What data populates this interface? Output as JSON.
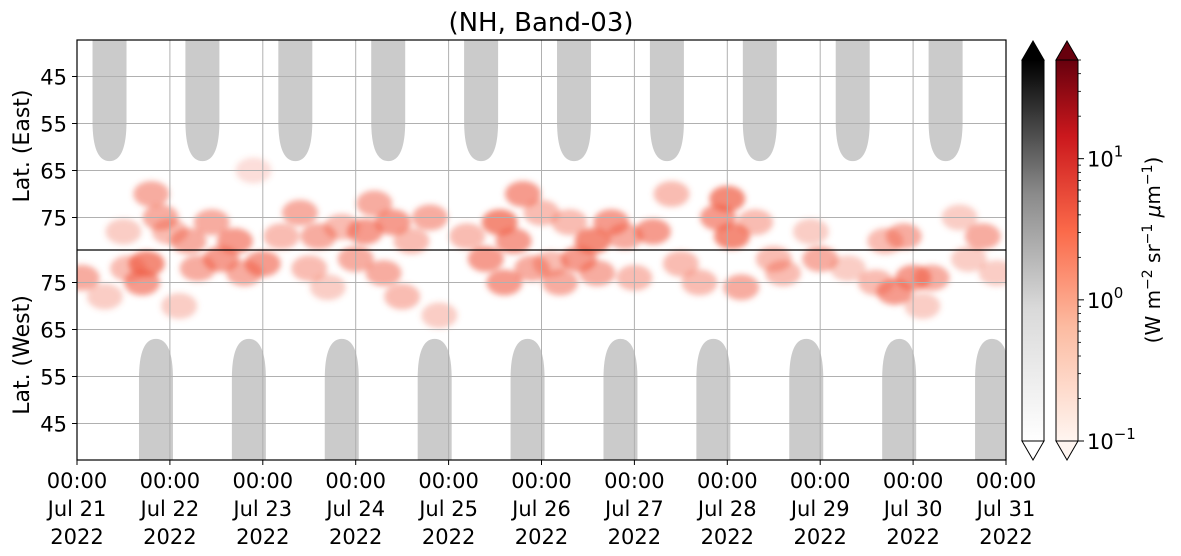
{
  "chart_data": {
    "type": "heatmap",
    "title": "(NH, Band-03)",
    "ylabel_top": "Lat. (East)",
    "ylabel_bottom": "Lat. (West)",
    "y_ticks_top": [
      "45",
      "55",
      "65",
      "75"
    ],
    "y_ticks_bottom": [
      "75",
      "65",
      "55",
      "45"
    ],
    "y_tick_values_top": [
      45,
      55,
      65,
      75
    ],
    "y_tick_values_bottom": [
      75,
      65,
      55,
      45
    ],
    "x_tick_labels": [
      {
        "time": "00:00",
        "date": "Jul 21",
        "year": "2022"
      },
      {
        "time": "00:00",
        "date": "Jul 22",
        "year": "2022"
      },
      {
        "time": "00:00",
        "date": "Jul 23",
        "year": "2022"
      },
      {
        "time": "00:00",
        "date": "Jul 24",
        "year": "2022"
      },
      {
        "time": "00:00",
        "date": "Jul 25",
        "year": "2022"
      },
      {
        "time": "00:00",
        "date": "Jul 26",
        "year": "2022"
      },
      {
        "time": "00:00",
        "date": "Jul 27",
        "year": "2022"
      },
      {
        "time": "00:00",
        "date": "Jul 28",
        "year": "2022"
      },
      {
        "time": "00:00",
        "date": "Jul 29",
        "year": "2022"
      },
      {
        "time": "00:00",
        "date": "Jul 30",
        "year": "2022"
      },
      {
        "time": "00:00",
        "date": "Jul 31",
        "year": "2022"
      }
    ],
    "x_range": [
      "2022-07-21 00:00",
      "2022-07-31 00:00"
    ],
    "colorbar": {
      "label": "(W m$^{-2}$ sr$^{-1}$ $\\mu$m$^{-1}$)",
      "scale": "log",
      "range": [
        0.1,
        50
      ],
      "ticks": [
        {
          "base": "10",
          "exp": "1",
          "value": 10
        },
        {
          "base": "10",
          "exp": "0",
          "value": 1
        },
        {
          "base": "10",
          "exp": "−1",
          "value": 0.1
        }
      ],
      "colormaps": [
        "Greys",
        "Reds"
      ],
      "extend": "both"
    },
    "grid": true,
    "divider_line": "black horizontal line between East and West halves",
    "daylight_masks": [
      {
        "hemisphere": "east",
        "center_day": 0.35
      },
      {
        "hemisphere": "east",
        "center_day": 1.35
      },
      {
        "hemisphere": "east",
        "center_day": 2.35
      },
      {
        "hemisphere": "east",
        "center_day": 3.35
      },
      {
        "hemisphere": "east",
        "center_day": 4.35
      },
      {
        "hemisphere": "east",
        "center_day": 5.35
      },
      {
        "hemisphere": "east",
        "center_day": 6.35
      },
      {
        "hemisphere": "east",
        "center_day": 7.35
      },
      {
        "hemisphere": "east",
        "center_day": 8.35
      },
      {
        "hemisphere": "east",
        "center_day": 9.35
      },
      {
        "hemisphere": "west",
        "center_day": 0.85
      },
      {
        "hemisphere": "west",
        "center_day": 1.85
      },
      {
        "hemisphere": "west",
        "center_day": 2.85
      },
      {
        "hemisphere": "west",
        "center_day": 3.85
      },
      {
        "hemisphere": "west",
        "center_day": 4.85
      },
      {
        "hemisphere": "west",
        "center_day": 5.85
      },
      {
        "hemisphere": "west",
        "center_day": 6.85
      },
      {
        "hemisphere": "west",
        "center_day": 7.85
      },
      {
        "hemisphere": "west",
        "center_day": 8.85
      },
      {
        "hemisphere": "west",
        "center_day": 9.85
      }
    ],
    "mask_edge_latitude": 63,
    "aurora_patches": [
      {
        "day": 0.05,
        "hemisphere": "west",
        "lat": 76,
        "intensity": 0.5
      },
      {
        "day": 0.3,
        "hemisphere": "west",
        "lat": 72,
        "intensity": 0.3
      },
      {
        "day": 0.5,
        "hemisphere": "east",
        "lat": 78,
        "intensity": 0.3
      },
      {
        "day": 0.55,
        "hemisphere": "west",
        "lat": 78,
        "intensity": 0.4
      },
      {
        "day": 0.7,
        "hemisphere": "west",
        "lat": 75,
        "intensity": 0.6
      },
      {
        "day": 0.75,
        "hemisphere": "west",
        "lat": 79,
        "intensity": 0.7
      },
      {
        "day": 0.8,
        "hemisphere": "east",
        "lat": 70,
        "intensity": 0.5
      },
      {
        "day": 0.9,
        "hemisphere": "east",
        "lat": 75,
        "intensity": 0.5
      },
      {
        "day": 1.0,
        "hemisphere": "east",
        "lat": 78,
        "intensity": 0.4
      },
      {
        "day": 1.1,
        "hemisphere": "west",
        "lat": 70,
        "intensity": 0.3
      },
      {
        "day": 1.2,
        "hemisphere": "east",
        "lat": 80,
        "intensity": 0.5
      },
      {
        "day": 1.3,
        "hemisphere": "west",
        "lat": 78,
        "intensity": 0.5
      },
      {
        "day": 1.45,
        "hemisphere": "east",
        "lat": 76,
        "intensity": 0.5
      },
      {
        "day": 1.55,
        "hemisphere": "west",
        "lat": 80,
        "intensity": 0.6
      },
      {
        "day": 1.7,
        "hemisphere": "east",
        "lat": 80,
        "intensity": 0.6
      },
      {
        "day": 1.8,
        "hemisphere": "west",
        "lat": 77,
        "intensity": 0.5
      },
      {
        "day": 1.9,
        "hemisphere": "east",
        "lat": 65,
        "intensity": 0.2
      },
      {
        "day": 2.0,
        "hemisphere": "west",
        "lat": 79,
        "intensity": 0.6
      },
      {
        "day": 2.2,
        "hemisphere": "east",
        "lat": 79,
        "intensity": 0.4
      },
      {
        "day": 2.4,
        "hemisphere": "east",
        "lat": 74,
        "intensity": 0.5
      },
      {
        "day": 2.5,
        "hemisphere": "west",
        "lat": 78,
        "intensity": 0.4
      },
      {
        "day": 2.6,
        "hemisphere": "east",
        "lat": 79,
        "intensity": 0.5
      },
      {
        "day": 2.7,
        "hemisphere": "west",
        "lat": 74,
        "intensity": 0.3
      },
      {
        "day": 2.85,
        "hemisphere": "east",
        "lat": 77,
        "intensity": 0.4
      },
      {
        "day": 3.0,
        "hemisphere": "west",
        "lat": 80,
        "intensity": 0.5
      },
      {
        "day": 3.1,
        "hemisphere": "east",
        "lat": 78,
        "intensity": 0.6
      },
      {
        "day": 3.2,
        "hemisphere": "east",
        "lat": 72,
        "intensity": 0.5
      },
      {
        "day": 3.3,
        "hemisphere": "west",
        "lat": 77,
        "intensity": 0.5
      },
      {
        "day": 3.4,
        "hemisphere": "east",
        "lat": 76,
        "intensity": 0.6
      },
      {
        "day": 3.5,
        "hemisphere": "west",
        "lat": 72,
        "intensity": 0.4
      },
      {
        "day": 3.6,
        "hemisphere": "east",
        "lat": 80,
        "intensity": 0.4
      },
      {
        "day": 3.8,
        "hemisphere": "east",
        "lat": 75,
        "intensity": 0.5
      },
      {
        "day": 3.9,
        "hemisphere": "west",
        "lat": 68,
        "intensity": 0.3
      },
      {
        "day": 4.2,
        "hemisphere": "east",
        "lat": 79,
        "intensity": 0.4
      },
      {
        "day": 4.4,
        "hemisphere": "west",
        "lat": 80,
        "intensity": 0.6
      },
      {
        "day": 4.55,
        "hemisphere": "east",
        "lat": 76,
        "intensity": 0.7
      },
      {
        "day": 4.6,
        "hemisphere": "west",
        "lat": 75,
        "intensity": 0.6
      },
      {
        "day": 4.7,
        "hemisphere": "east",
        "lat": 80,
        "intensity": 0.6
      },
      {
        "day": 4.8,
        "hemisphere": "east",
        "lat": 70,
        "intensity": 0.6
      },
      {
        "day": 4.9,
        "hemisphere": "west",
        "lat": 78,
        "intensity": 0.5
      },
      {
        "day": 5.0,
        "hemisphere": "east",
        "lat": 74,
        "intensity": 0.4
      },
      {
        "day": 5.1,
        "hemisphere": "west",
        "lat": 79,
        "intensity": 0.4
      },
      {
        "day": 5.2,
        "hemisphere": "west",
        "lat": 75,
        "intensity": 0.5
      },
      {
        "day": 5.3,
        "hemisphere": "east",
        "lat": 76,
        "intensity": 0.4
      },
      {
        "day": 5.4,
        "hemisphere": "west",
        "lat": 80,
        "intensity": 0.6
      },
      {
        "day": 5.55,
        "hemisphere": "east",
        "lat": 80,
        "intensity": 0.7
      },
      {
        "day": 5.6,
        "hemisphere": "west",
        "lat": 77,
        "intensity": 0.5
      },
      {
        "day": 5.75,
        "hemisphere": "east",
        "lat": 76,
        "intensity": 0.6
      },
      {
        "day": 5.9,
        "hemisphere": "east",
        "lat": 79,
        "intensity": 0.5
      },
      {
        "day": 6.0,
        "hemisphere": "west",
        "lat": 76,
        "intensity": 0.4
      },
      {
        "day": 6.2,
        "hemisphere": "east",
        "lat": 78,
        "intensity": 0.6
      },
      {
        "day": 6.4,
        "hemisphere": "east",
        "lat": 70,
        "intensity": 0.4
      },
      {
        "day": 6.5,
        "hemisphere": "west",
        "lat": 79,
        "intensity": 0.4
      },
      {
        "day": 6.7,
        "hemisphere": "west",
        "lat": 75,
        "intensity": 0.4
      },
      {
        "day": 6.9,
        "hemisphere": "east",
        "lat": 75,
        "intensity": 0.6
      },
      {
        "day": 7.0,
        "hemisphere": "east",
        "lat": 71,
        "intensity": 0.7
      },
      {
        "day": 7.05,
        "hemisphere": "east",
        "lat": 79,
        "intensity": 0.7
      },
      {
        "day": 7.15,
        "hemisphere": "west",
        "lat": 74,
        "intensity": 0.5
      },
      {
        "day": 7.3,
        "hemisphere": "east",
        "lat": 76,
        "intensity": 0.4
      },
      {
        "day": 7.5,
        "hemisphere": "west",
        "lat": 80,
        "intensity": 0.4
      },
      {
        "day": 7.6,
        "hemisphere": "west",
        "lat": 77,
        "intensity": 0.4
      },
      {
        "day": 7.9,
        "hemisphere": "east",
        "lat": 78,
        "intensity": 0.3
      },
      {
        "day": 8.0,
        "hemisphere": "west",
        "lat": 80,
        "intensity": 0.5
      },
      {
        "day": 8.3,
        "hemisphere": "west",
        "lat": 78,
        "intensity": 0.3
      },
      {
        "day": 8.6,
        "hemisphere": "west",
        "lat": 75,
        "intensity": 0.4
      },
      {
        "day": 8.7,
        "hemisphere": "east",
        "lat": 80,
        "intensity": 0.4
      },
      {
        "day": 8.8,
        "hemisphere": "west",
        "lat": 73,
        "intensity": 0.6
      },
      {
        "day": 8.9,
        "hemisphere": "east",
        "lat": 79,
        "intensity": 0.5
      },
      {
        "day": 9.0,
        "hemisphere": "west",
        "lat": 76,
        "intensity": 0.6
      },
      {
        "day": 9.1,
        "hemisphere": "west",
        "lat": 70,
        "intensity": 0.3
      },
      {
        "day": 9.2,
        "hemisphere": "west",
        "lat": 76,
        "intensity": 0.5
      },
      {
        "day": 9.5,
        "hemisphere": "east",
        "lat": 75,
        "intensity": 0.3
      },
      {
        "day": 9.6,
        "hemisphere": "west",
        "lat": 80,
        "intensity": 0.3
      },
      {
        "day": 9.75,
        "hemisphere": "east",
        "lat": 79,
        "intensity": 0.5
      },
      {
        "day": 9.9,
        "hemisphere": "west",
        "lat": 77,
        "intensity": 0.3
      }
    ],
    "colors": {
      "aurora": "#f0593f",
      "mask": "#c8c8c8",
      "grid": "#b0b0b0",
      "divider": "#000000"
    }
  }
}
